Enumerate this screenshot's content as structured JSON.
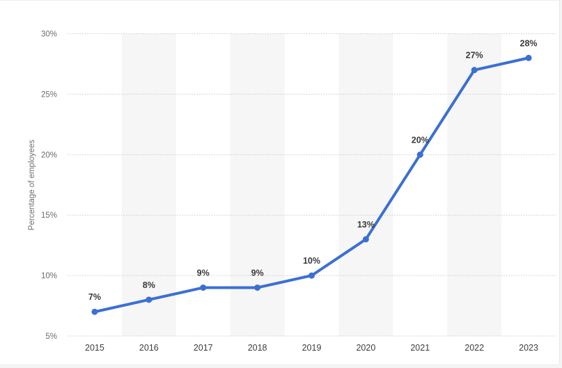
{
  "chart_data": {
    "type": "line",
    "title": "",
    "xlabel": "",
    "ylabel": "Percentage of employees",
    "categories": [
      "2015",
      "2016",
      "2017",
      "2018",
      "2019",
      "2020",
      "2021",
      "2022",
      "2023"
    ],
    "series": [
      {
        "values": [
          7,
          8,
          9,
          9,
          10,
          13,
          20,
          27,
          28
        ],
        "color": "#3b6fd4"
      }
    ],
    "data_labels": [
      "7%",
      "8%",
      "9%",
      "9%",
      "10%",
      "13%",
      "20%",
      "27%",
      "28%"
    ],
    "yticks": [
      5,
      10,
      15,
      20,
      25,
      30
    ],
    "ytick_labels": [
      "5%",
      "10%",
      "15%",
      "20%",
      "25%",
      "30%"
    ],
    "ylim": [
      5,
      30
    ],
    "grid": "horizontal dotted",
    "alternating_column_shading": true,
    "legend": "none"
  }
}
